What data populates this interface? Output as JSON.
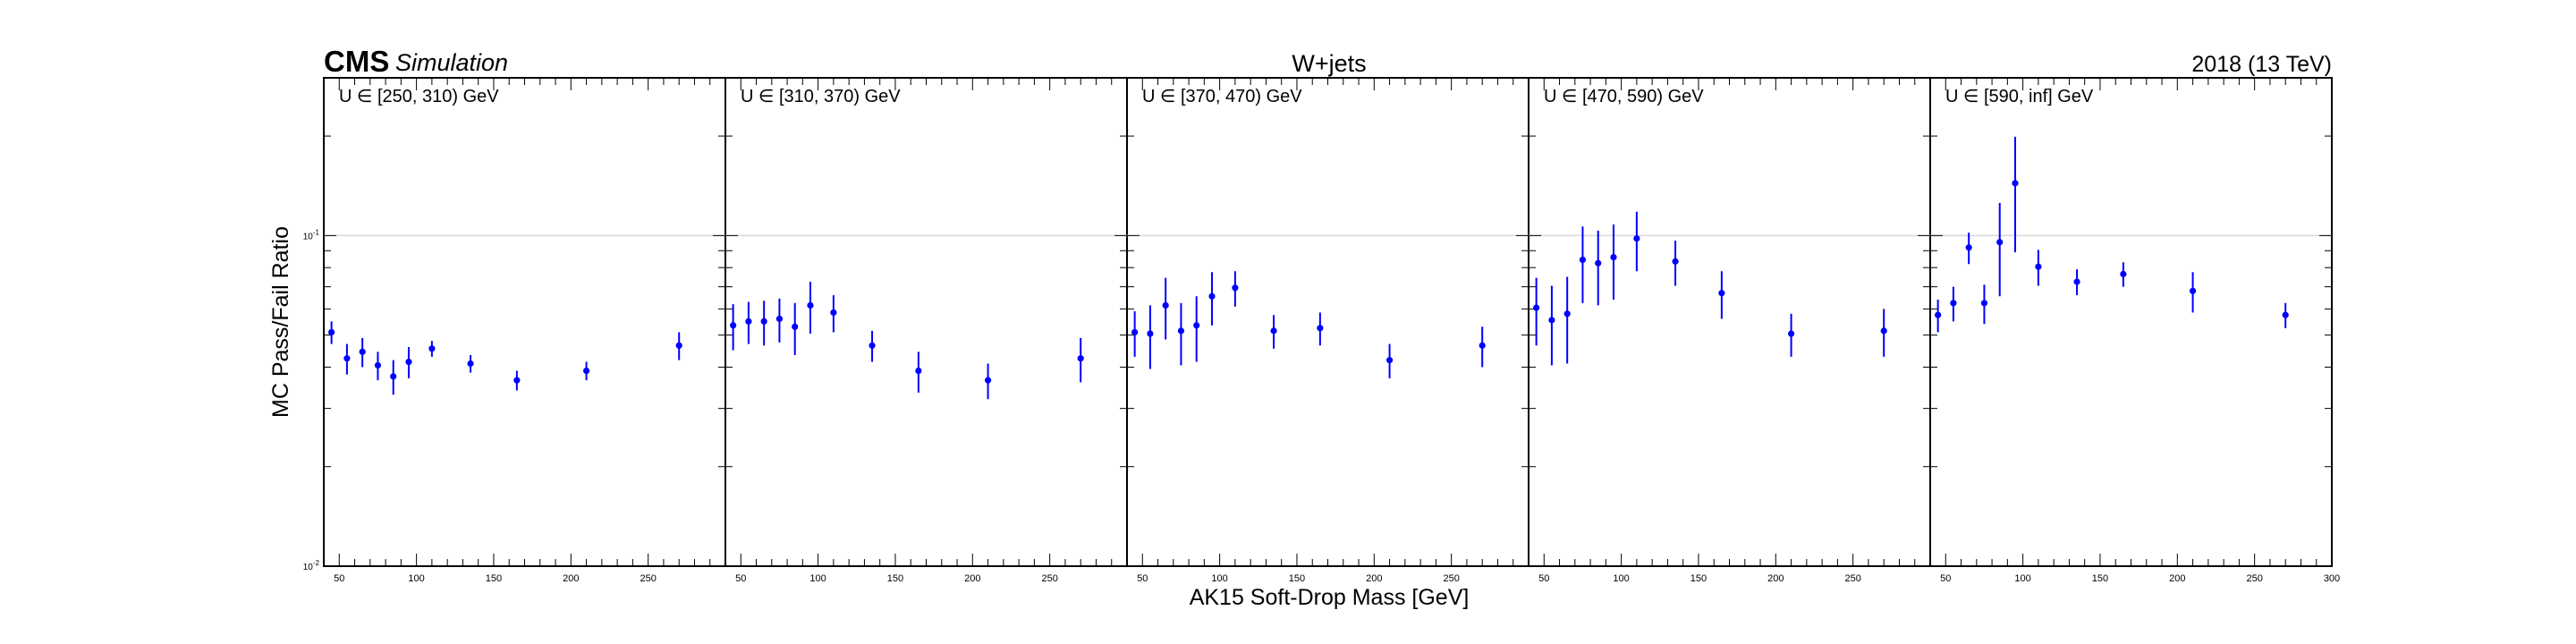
{
  "header": {
    "experiment": "CMS",
    "tag": "Simulation",
    "process": "W+jets",
    "lumi": "2018 (13 TeV)"
  },
  "axes": {
    "xlabel": "AK15 Soft-Drop Mass [GeV]",
    "ylabel": "MC Pass/Fail Ratio"
  },
  "colors": {
    "marker": "#0000ff",
    "frame": "#000000",
    "gridline": "#d8d8d8"
  },
  "chart_data": [
    {
      "type": "scatter",
      "label": "U ∈ [250, 310) GeV",
      "x": [
        45,
        55,
        65,
        75,
        85,
        95,
        110,
        135,
        165,
        210,
        270
      ],
      "y": [
        0.051,
        0.0425,
        0.0445,
        0.0405,
        0.0375,
        0.0415,
        0.0455,
        0.041,
        0.0365,
        0.039,
        0.0465
      ],
      "err": [
        0.004,
        0.0045,
        0.0045,
        0.004,
        0.0045,
        0.0045,
        0.0025,
        0.0025,
        0.0025,
        0.0025,
        0.0045
      ],
      "xlim": [
        40,
        300
      ],
      "ylim": [
        0.01,
        0.3
      ],
      "yscale": "log",
      "xticks": [
        50,
        100,
        150,
        200,
        250
      ],
      "yticks": [
        0.01,
        0.1
      ]
    },
    {
      "type": "scatter",
      "label": "U ∈ [310, 370) GeV",
      "x": [
        45,
        55,
        65,
        75,
        85,
        95,
        110,
        135,
        165,
        210,
        270
      ],
      "y": [
        0.0535,
        0.055,
        0.055,
        0.056,
        0.053,
        0.0615,
        0.0585,
        0.0465,
        0.039,
        0.0365,
        0.0425
      ],
      "err": [
        0.0085,
        0.008,
        0.0085,
        0.0085,
        0.0095,
        0.011,
        0.0075,
        0.005,
        0.0055,
        0.0045,
        0.0065
      ],
      "xlim": [
        40,
        300
      ],
      "ylim": [
        0.01,
        0.3
      ],
      "yscale": "log",
      "xticks": [
        50,
        100,
        150,
        200,
        250
      ],
      "yticks": [
        0.01,
        0.1
      ]
    },
    {
      "type": "scatter",
      "label": "U ∈ [370, 470) GeV",
      "x": [
        45,
        55,
        65,
        75,
        85,
        95,
        110,
        135,
        165,
        210,
        270
      ],
      "y": [
        0.051,
        0.0505,
        0.0615,
        0.0515,
        0.0535,
        0.0655,
        0.0695,
        0.0515,
        0.0525,
        0.042,
        0.0465
      ],
      "err": [
        0.008,
        0.011,
        0.013,
        0.011,
        0.012,
        0.012,
        0.0085,
        0.006,
        0.006,
        0.005,
        0.0065
      ],
      "xlim": [
        40,
        300
      ],
      "ylim": [
        0.01,
        0.3
      ],
      "yscale": "log",
      "xticks": [
        50,
        100,
        150,
        200,
        250
      ],
      "yticks": [
        0.01,
        0.1
      ]
    },
    {
      "type": "scatter",
      "label": "U ∈ [470, 590) GeV",
      "x": [
        45,
        55,
        65,
        75,
        85,
        95,
        110,
        135,
        165,
        210,
        270
      ],
      "y": [
        0.0605,
        0.0555,
        0.058,
        0.0845,
        0.0825,
        0.086,
        0.098,
        0.0835,
        0.067,
        0.0505,
        0.0515
      ],
      "err": [
        0.014,
        0.015,
        0.017,
        0.022,
        0.021,
        0.022,
        0.02,
        0.013,
        0.011,
        0.0075,
        0.0085
      ],
      "xlim": [
        40,
        300
      ],
      "ylim": [
        0.01,
        0.3
      ],
      "yscale": "log",
      "xticks": [
        50,
        100,
        150,
        200,
        250
      ],
      "yticks": [
        0.01,
        0.1
      ]
    },
    {
      "type": "scatter",
      "label": "U ∈ [590, inf] GeV",
      "x": [
        45,
        55,
        65,
        75,
        85,
        95,
        110,
        135,
        165,
        210,
        270
      ],
      "y": [
        0.0575,
        0.0625,
        0.092,
        0.0625,
        0.0955,
        0.144,
        0.0805,
        0.0725,
        0.0765,
        0.068,
        0.0575
      ],
      "err": [
        0.0065,
        0.0075,
        0.01,
        0.0085,
        0.03,
        0.055,
        0.01,
        0.0065,
        0.0065,
        0.0095,
        0.005
      ],
      "xlim": [
        40,
        300
      ],
      "ylim": [
        0.01,
        0.3
      ],
      "yscale": "log",
      "xticks": [
        50,
        100,
        150,
        200,
        250,
        300
      ],
      "yticks": [
        0.01,
        0.1
      ]
    }
  ]
}
